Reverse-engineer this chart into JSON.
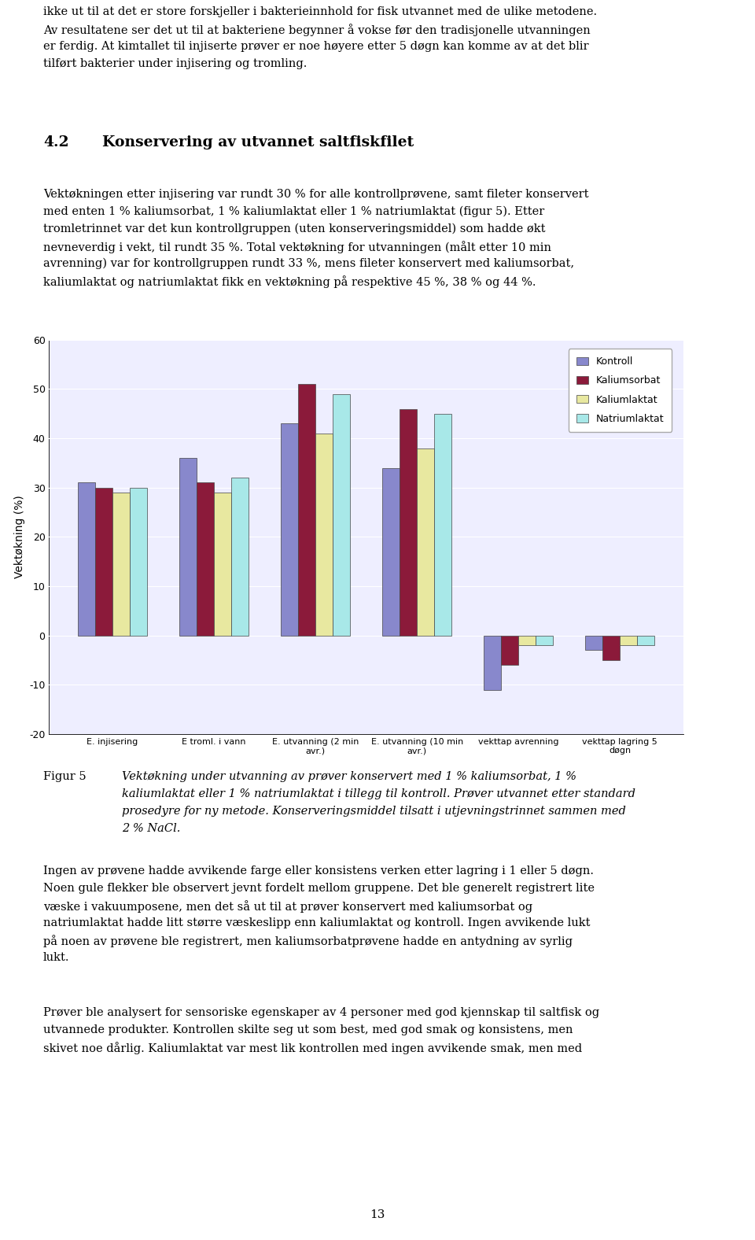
{
  "groups": [
    "E. injisering",
    "E troml. i vann",
    "E. utvanning (2 min\navr.)",
    "E. utvanning (10 min\navr.)",
    "vekttap avrenning",
    "vekttap lagring 5\ndøgn"
  ],
  "series": {
    "Kontroll": [
      31,
      36,
      43,
      34,
      -11,
      -3
    ],
    "Kaliumsorbat": [
      30,
      31,
      51,
      46,
      -6,
      -5
    ],
    "Kaliumlaktat": [
      29,
      29,
      41,
      38,
      -2,
      -2
    ],
    "Natriumlaktat": [
      30,
      32,
      49,
      45,
      -2,
      -2
    ]
  },
  "colors": {
    "Kontroll": "#8888cc",
    "Kaliumsorbat": "#8b1a3a",
    "Kaliumlaktat": "#e8e8a0",
    "Natriumlaktat": "#a8e8e8"
  },
  "ylabel": "Vektøkning (%)",
  "ylim": [
    -20,
    60
  ],
  "yticks": [
    -20,
    -10,
    0,
    10,
    20,
    30,
    40,
    50,
    60
  ],
  "background_color": "#ffffff",
  "plot_bg": "#eeeeff"
}
